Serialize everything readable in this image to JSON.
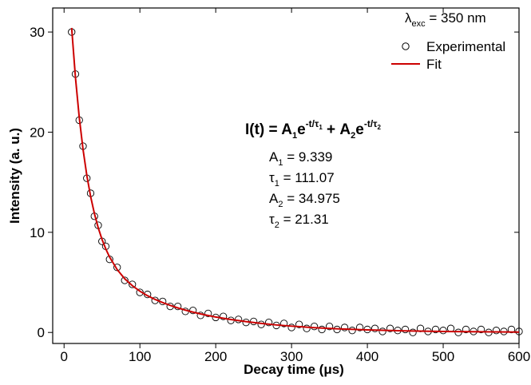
{
  "chart_data": {
    "type": "scatter",
    "x_label": "Decay time (μs)",
    "y_label": "Intensity (a. u.)",
    "xlim": [
      -15,
      600
    ],
    "ylim": [
      -1.1,
      32.4
    ],
    "xticks": [
      0,
      100,
      200,
      300,
      400,
      500,
      600
    ],
    "yticks": [
      0,
      10,
      20,
      30
    ],
    "legend": "upper right",
    "series": [
      {
        "name": "Experimental",
        "type": "scatter",
        "color": "#000000",
        "x": [
          10,
          15,
          20,
          25,
          30,
          35,
          40,
          45,
          50,
          55,
          60,
          70,
          80,
          90,
          100,
          110,
          120,
          130,
          140,
          150,
          160,
          170,
          180,
          190,
          200,
          210,
          220,
          230,
          240,
          250,
          260,
          270,
          280,
          290,
          300,
          310,
          320,
          330,
          340,
          350,
          360,
          370,
          380,
          390,
          400,
          410,
          420,
          430,
          440,
          450,
          460,
          470,
          480,
          490,
          500,
          510,
          520,
          530,
          540,
          550,
          560,
          570,
          580,
          590,
          600
        ],
        "values": [
          30.0,
          25.8,
          21.2,
          18.6,
          15.4,
          13.9,
          11.6,
          10.7,
          9.1,
          8.6,
          7.3,
          6.5,
          5.2,
          4.8,
          4.0,
          3.8,
          3.2,
          3.1,
          2.6,
          2.6,
          2.1,
          2.2,
          1.7,
          1.9,
          1.5,
          1.6,
          1.2,
          1.3,
          1.0,
          1.1,
          0.8,
          1.0,
          0.7,
          0.9,
          0.5,
          0.8,
          0.4,
          0.6,
          0.3,
          0.6,
          0.3,
          0.5,
          0.2,
          0.5,
          0.3,
          0.4,
          0.1,
          0.4,
          0.2,
          0.3,
          0.0,
          0.4,
          0.1,
          0.3,
          0.2,
          0.4,
          0.0,
          0.3,
          0.1,
          0.3,
          0.0,
          0.2,
          0.1,
          0.3,
          0.1
        ]
      },
      {
        "name": "Fit",
        "type": "line",
        "color": "#cc0000",
        "x": [
          10,
          15,
          20,
          25,
          30,
          35,
          40,
          45,
          50,
          55,
          60,
          70,
          80,
          90,
          100,
          110,
          120,
          130,
          140,
          150,
          160,
          170,
          180,
          190,
          200,
          220,
          240,
          260,
          280,
          300,
          330,
          360,
          400,
          450,
          500,
          550,
          600
        ],
        "values": [
          30.41,
          25.46,
          21.48,
          18.28,
          15.68,
          13.58,
          11.87,
          10.46,
          9.3,
          8.34,
          7.53,
          6.28,
          5.36,
          4.67,
          4.12,
          3.67,
          3.3,
          2.98,
          2.7,
          2.45,
          2.23,
          2.03,
          1.85,
          1.69,
          1.54,
          1.29,
          1.08,
          0.9,
          0.75,
          0.63,
          0.48,
          0.37,
          0.26,
          0.16,
          0.1,
          0.07,
          0.04
        ]
      }
    ],
    "annotations": {
      "excitation": [
        "λ",
        "exc",
        " = 350 nm"
      ],
      "equation": [
        "I(t) = A",
        "1",
        "e",
        "-t/τ",
        "1",
        " + A",
        "2",
        "e",
        "-t/τ",
        "2"
      ],
      "parameters": [
        [
          "A",
          "1",
          " = 9.339"
        ],
        [
          "τ",
          "1",
          " = 111.07"
        ],
        [
          "A",
          "2",
          " = 34.975"
        ],
        [
          "τ",
          "2",
          " = 21.31"
        ]
      ]
    }
  }
}
